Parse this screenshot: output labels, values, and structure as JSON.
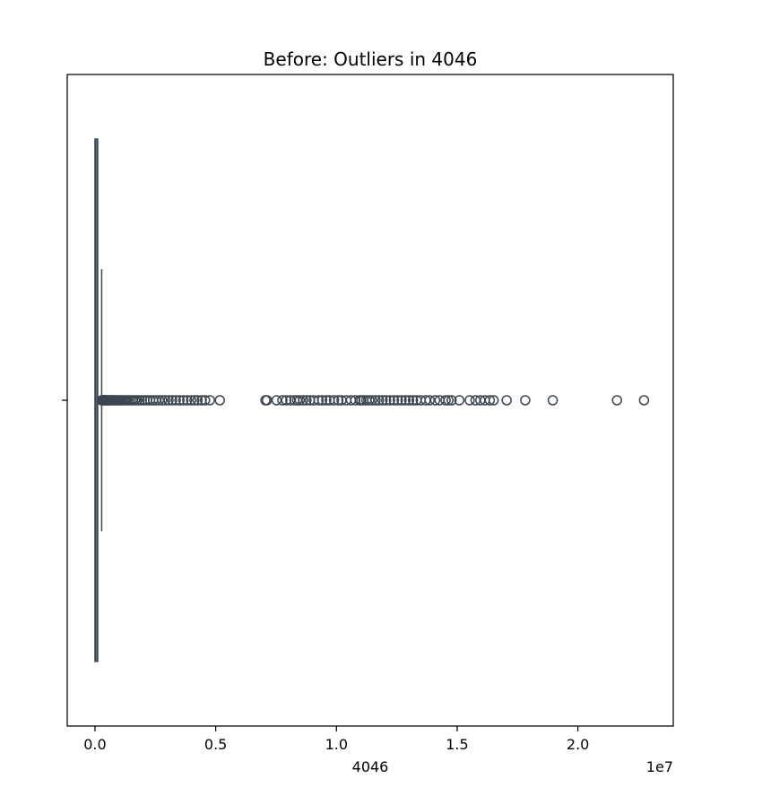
{
  "chart_data": {
    "type": "box",
    "title": "Before: Outliers in 4046",
    "xlabel": "4046",
    "ylabel": "",
    "x_offset_label": "1e7",
    "x_scale": 10000000,
    "xlim": [
      -1150000,
      23950000
    ],
    "x_ticks": [
      {
        "value": 0,
        "label": "0.0"
      },
      {
        "value": 5000000,
        "label": "0.5"
      },
      {
        "value": 10000000,
        "label": "1.0"
      },
      {
        "value": 15000000,
        "label": "1.5"
      },
      {
        "value": 20000000,
        "label": "2.0"
      }
    ],
    "box": {
      "q1": 0,
      "median": 8600,
      "q3": 111000,
      "whisker_low": 0,
      "whisker_high": 277000
    },
    "outliers": [
      280000,
      300000,
      320000,
      340000,
      360000,
      380000,
      400000,
      420000,
      450000,
      480000,
      510000,
      540000,
      570000,
      600000,
      640000,
      680000,
      720000,
      760000,
      800000,
      850000,
      900000,
      950000,
      1000000,
      1060000,
      1120000,
      1180000,
      1250000,
      1320000,
      1400000,
      1480000,
      1560000,
      1650000,
      1740000,
      1840000,
      1940000,
      2050000,
      2160000,
      2280000,
      2400000,
      2520000,
      2650000,
      2780000,
      2910000,
      3050000,
      3200000,
      3350000,
      3500000,
      3660000,
      3820000,
      3980000,
      4120000,
      4250000,
      4420000,
      4560000,
      4760000,
      5170000,
      7060000,
      7120000,
      7520000,
      7760000,
      7920000,
      8090000,
      8260000,
      8370000,
      8480000,
      8620000,
      8760000,
      8900000,
      9060000,
      9260000,
      9410000,
      9580000,
      9720000,
      9900000,
      10080000,
      10210000,
      10410000,
      10600000,
      10780000,
      10960000,
      11030000,
      11120000,
      11240000,
      11360000,
      11480000,
      11620000,
      11760000,
      11910000,
      12060000,
      12220000,
      12380000,
      12540000,
      12700000,
      12860000,
      13010000,
      13170000,
      13320000,
      13490000,
      13700000,
      13860000,
      14090000,
      14270000,
      14520000,
      14640000,
      14770000,
      15090000,
      15520000,
      15760000,
      15960000,
      16150000,
      16350000,
      16510000,
      17050000,
      17820000,
      18960000,
      21620000,
      22740000
    ]
  }
}
